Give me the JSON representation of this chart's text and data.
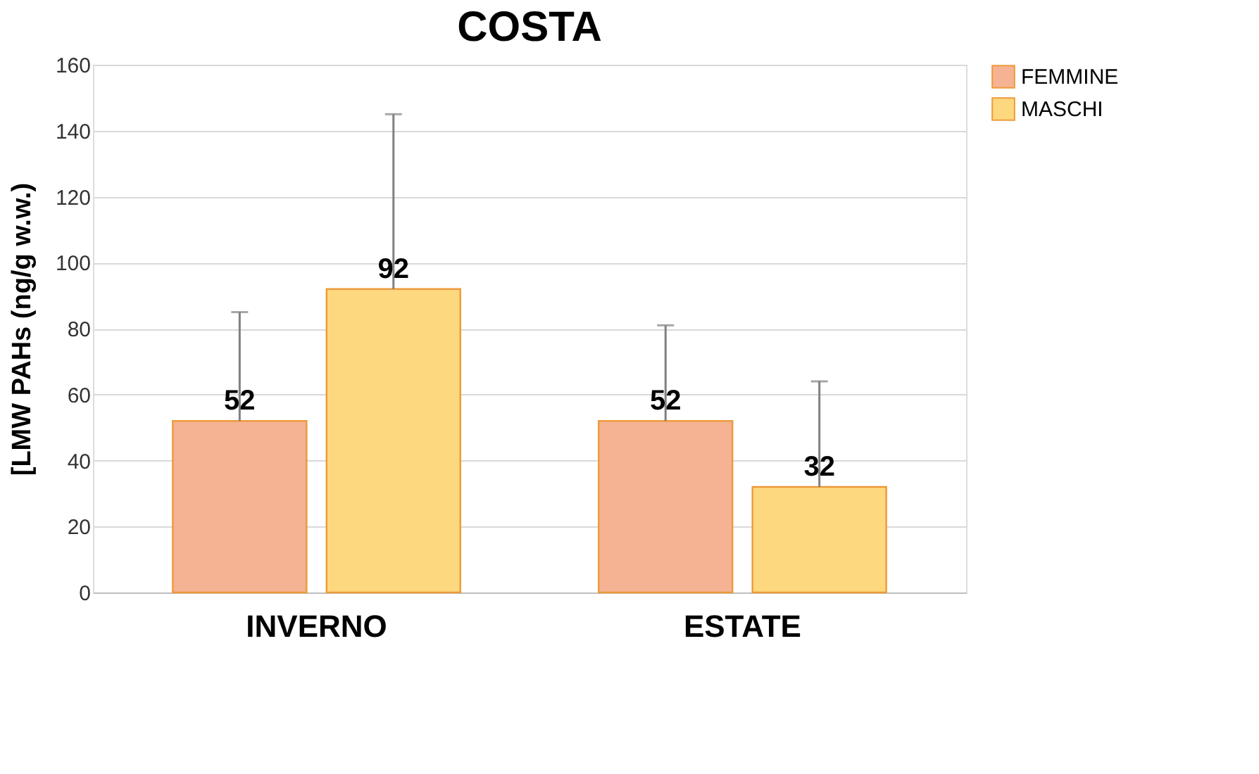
{
  "chart_data": {
    "type": "bar",
    "title": "COSTA",
    "ylabel": "[LMW PAHs (ng/g w.w.)",
    "categories": [
      "INVERNO",
      "ESTATE"
    ],
    "series": [
      {
        "name": "FEMMINE",
        "color": "#f5b394",
        "values": [
          52,
          52
        ],
        "errors": [
          [
            52,
            85
          ],
          [
            52,
            81
          ]
        ]
      },
      {
        "name": "MASCHI",
        "color": "#fed87f",
        "values": [
          92,
          32
        ],
        "errors": [
          [
            92,
            145
          ],
          [
            32,
            64
          ]
        ]
      }
    ],
    "ylim": [
      0,
      160
    ],
    "yticks": [
      0,
      20,
      40,
      60,
      80,
      100,
      120,
      140,
      160
    ],
    "grid": "y",
    "legend": "right",
    "data_labels": true
  }
}
